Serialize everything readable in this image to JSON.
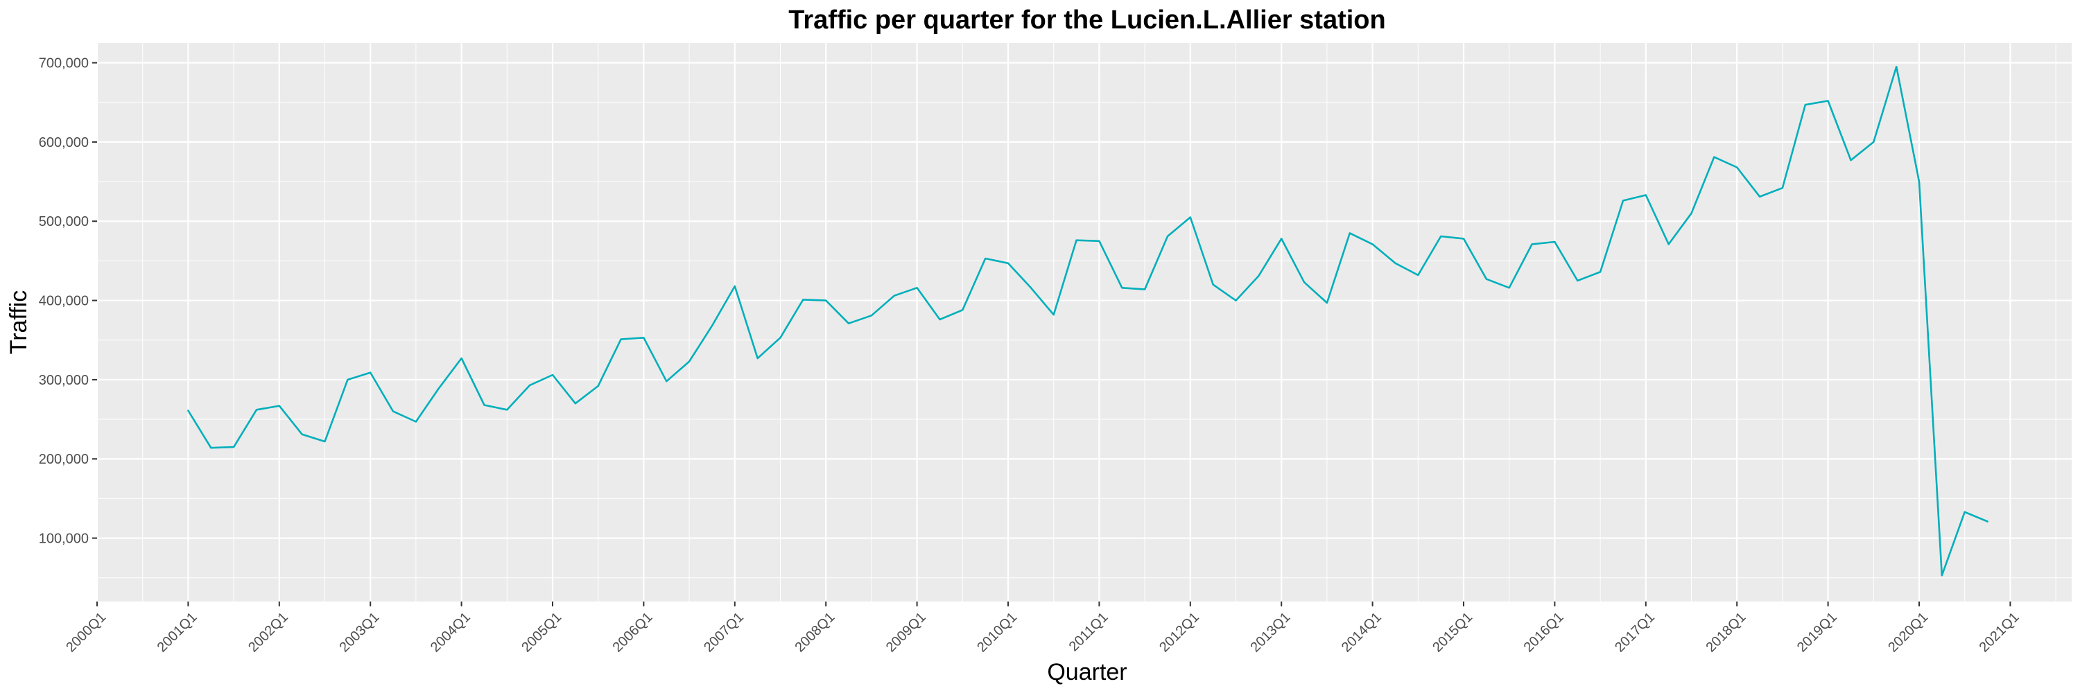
{
  "chart_data": {
    "type": "line",
    "title": "Traffic per quarter for the Lucien.L.Allier station",
    "xlabel": "Quarter",
    "ylabel": "Traffic",
    "colors": {
      "line": "#00AFBB",
      "panel": "#EBEBEB",
      "grid": "#FFFFFF",
      "text": "#4D4D4D"
    },
    "grid": true,
    "ylim": [
      20000,
      725000
    ],
    "y_ticks": [
      100000,
      200000,
      300000,
      400000,
      500000,
      600000,
      700000
    ],
    "y_tick_labels": [
      "100,000",
      "200,000",
      "300,000",
      "400,000",
      "500,000",
      "600,000",
      "700,000"
    ],
    "x_tick_labels": [
      "2000Q1",
      "2001Q1",
      "2002Q1",
      "2003Q1",
      "2004Q1",
      "2005Q1",
      "2006Q1",
      "2007Q1",
      "2008Q1",
      "2009Q1",
      "2010Q1",
      "2011Q1",
      "2012Q1",
      "2013Q1",
      "2014Q1",
      "2015Q1",
      "2016Q1",
      "2017Q1",
      "2018Q1",
      "2019Q1",
      "2020Q1",
      "2021Q1"
    ],
    "series": [
      {
        "x": [
          "2001Q1",
          "2001Q2",
          "2001Q3",
          "2001Q4",
          "2002Q1",
          "2002Q2",
          "2002Q3",
          "2002Q4",
          "2003Q1",
          "2003Q2",
          "2003Q3",
          "2003Q4",
          "2004Q1",
          "2004Q2",
          "2004Q3",
          "2004Q4",
          "2005Q1",
          "2005Q2",
          "2005Q3",
          "2005Q4",
          "2006Q1",
          "2006Q2",
          "2006Q3",
          "2006Q4",
          "2007Q1",
          "2007Q2",
          "2007Q3",
          "2007Q4",
          "2008Q1",
          "2008Q2",
          "2008Q3",
          "2008Q4",
          "2009Q1",
          "2009Q2",
          "2009Q3",
          "2009Q4",
          "2010Q1",
          "2010Q2",
          "2010Q3",
          "2010Q4",
          "2011Q1",
          "2011Q2",
          "2011Q3",
          "2011Q4",
          "2012Q1",
          "2012Q2",
          "2012Q3",
          "2012Q4",
          "2013Q1",
          "2013Q2",
          "2013Q3",
          "2013Q4",
          "2014Q1",
          "2014Q2",
          "2014Q3",
          "2014Q4",
          "2015Q1",
          "2015Q2",
          "2015Q3",
          "2015Q4",
          "2016Q1",
          "2016Q2",
          "2016Q3",
          "2016Q4",
          "2017Q1",
          "2017Q2",
          "2017Q3",
          "2017Q4",
          "2018Q1",
          "2018Q2",
          "2018Q3",
          "2018Q4",
          "2019Q1",
          "2019Q2",
          "2019Q3",
          "2019Q4",
          "2020Q1",
          "2020Q2",
          "2020Q3",
          "2020Q4"
        ],
        "values": [
          261000,
          214000,
          215000,
          262000,
          267000,
          231000,
          222000,
          300000,
          309000,
          260000,
          247000,
          289000,
          327000,
          268000,
          262000,
          293000,
          306000,
          270000,
          292000,
          351000,
          353000,
          298000,
          323000,
          368000,
          418000,
          327000,
          353000,
          401000,
          400000,
          371000,
          381000,
          406000,
          416000,
          376000,
          388000,
          453000,
          447000,
          416000,
          382000,
          476000,
          475000,
          416000,
          414000,
          481000,
          505000,
          420000,
          400000,
          431000,
          478000,
          423000,
          397000,
          485000,
          471000,
          447000,
          432000,
          481000,
          478000,
          427000,
          416000,
          471000,
          474000,
          425000,
          436000,
          526000,
          533000,
          471000,
          510000,
          581000,
          568000,
          531000,
          542000,
          647000,
          652000,
          577000,
          600000,
          695000,
          550000,
          53000,
          133000,
          121000
        ]
      }
    ]
  }
}
